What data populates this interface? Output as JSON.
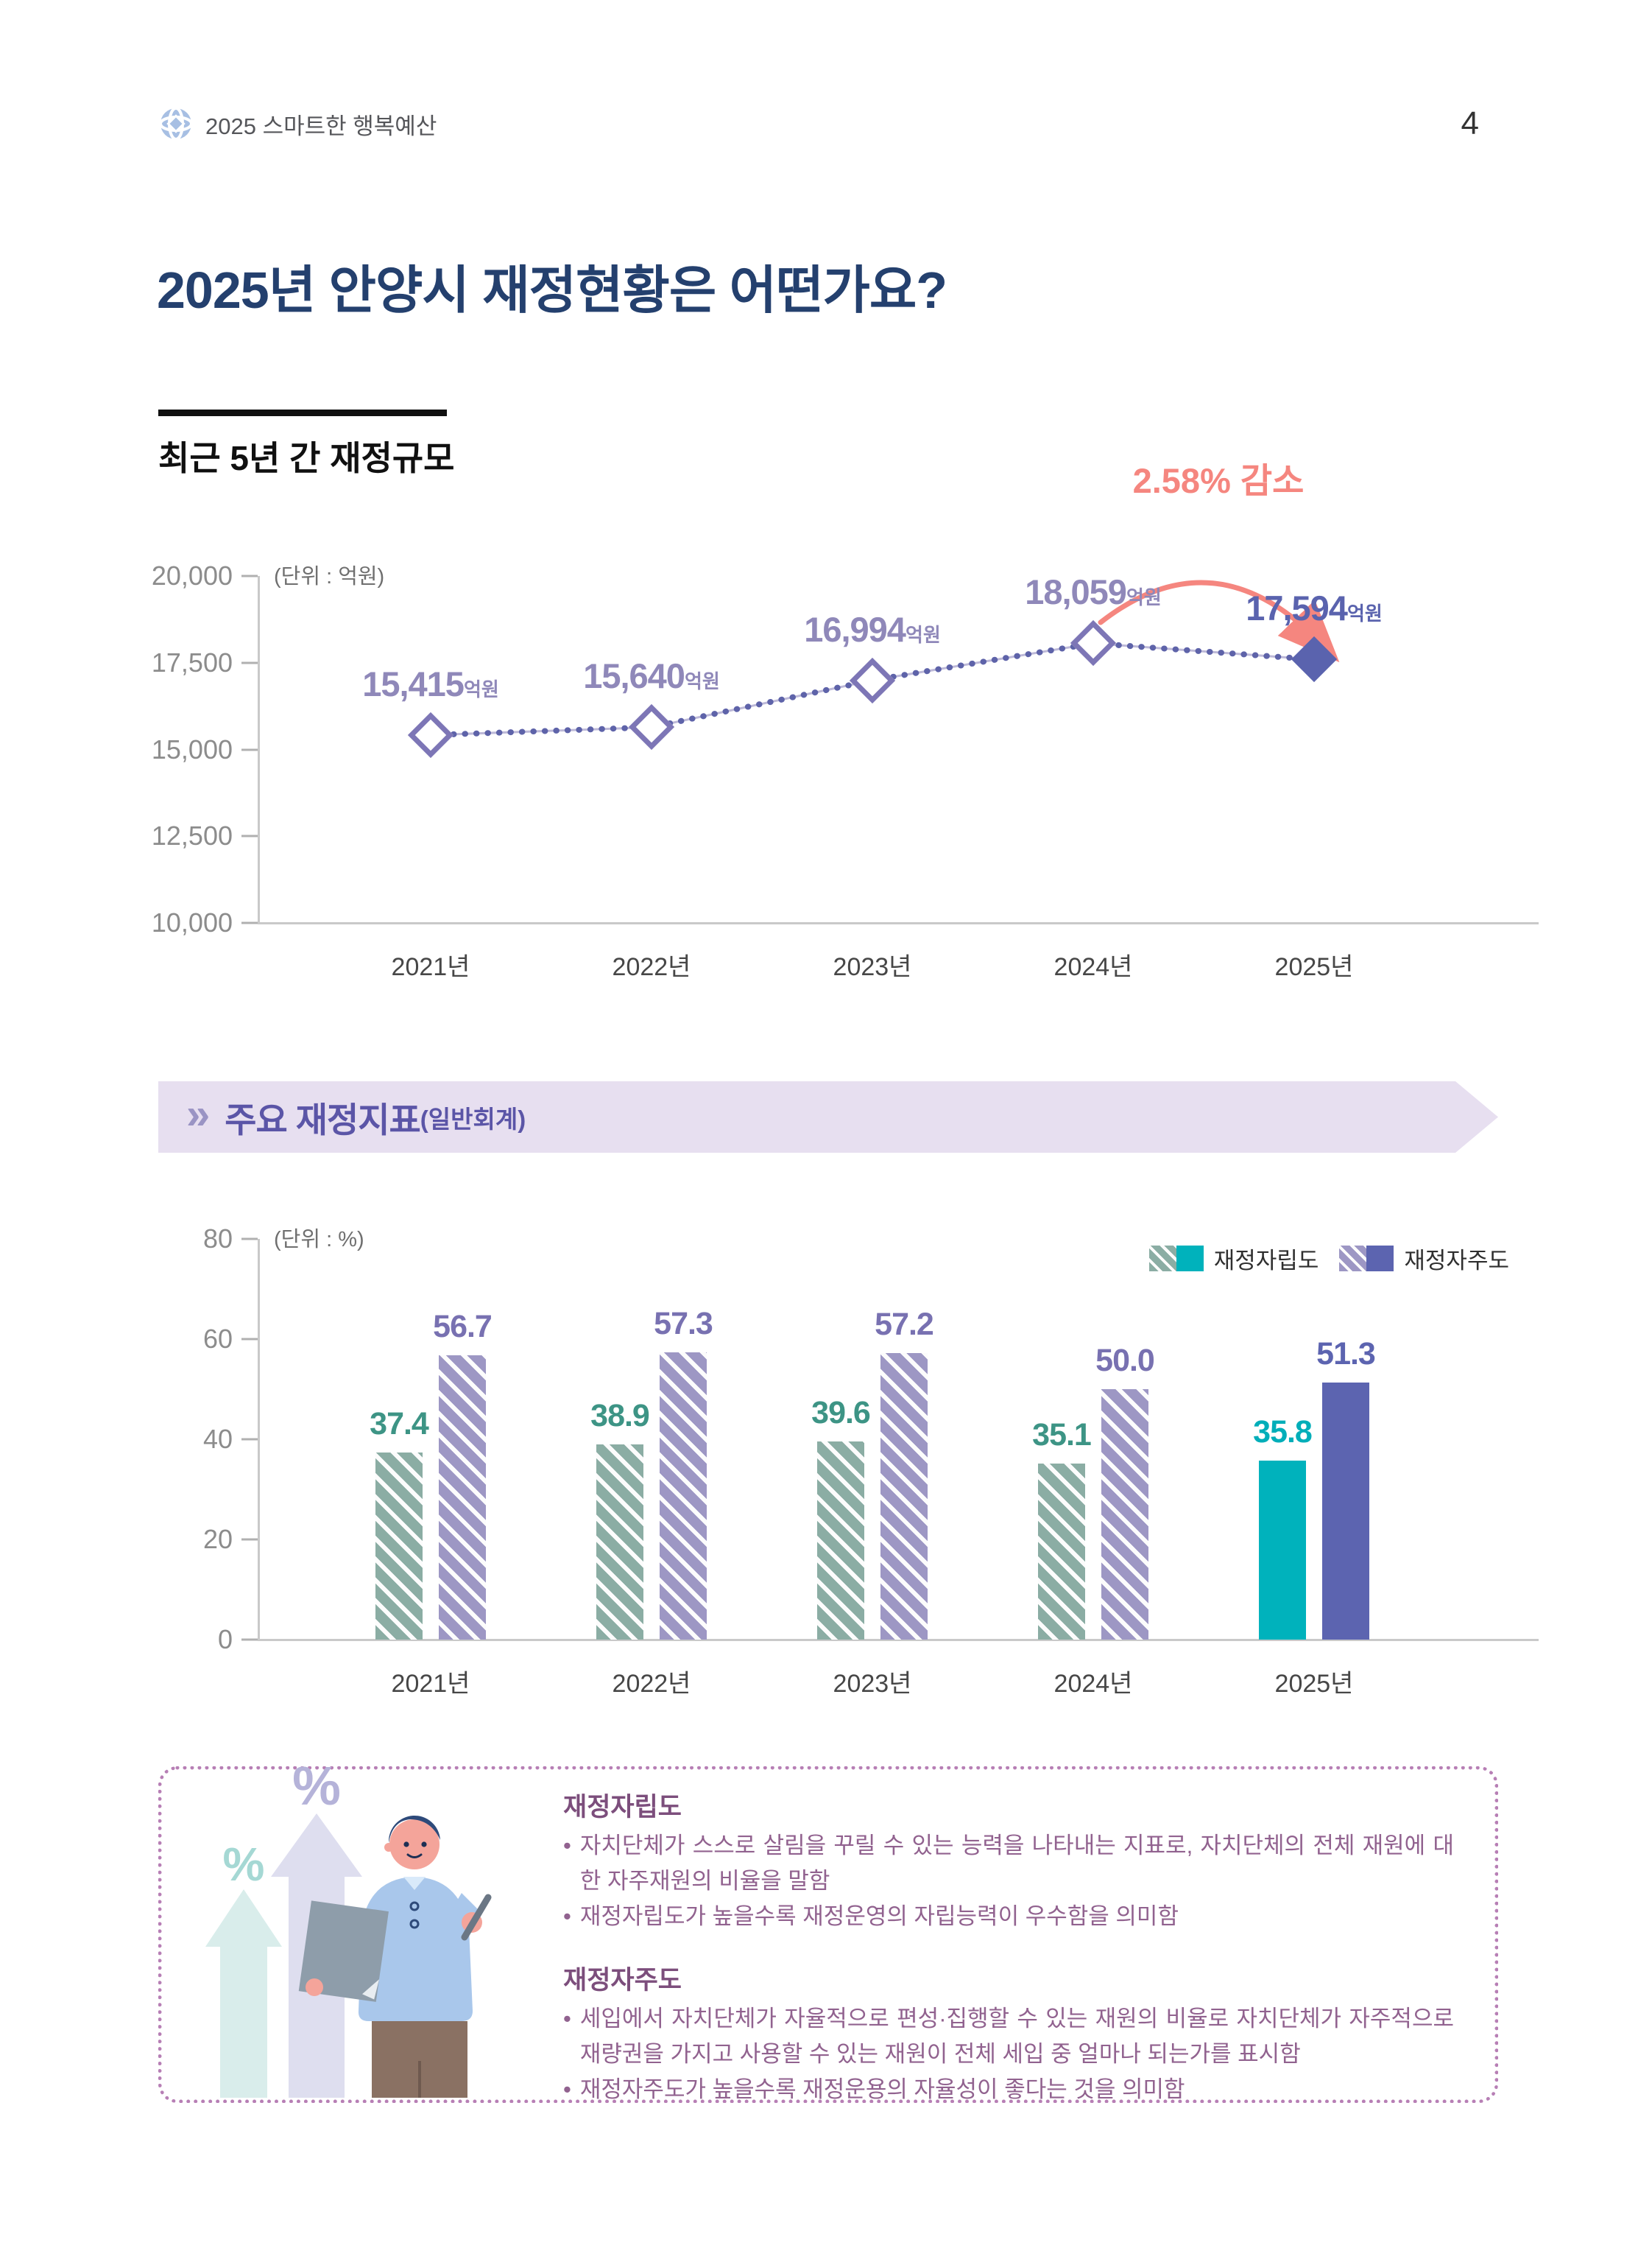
{
  "page": {
    "number": "4"
  },
  "header": {
    "brand": "2025 스마트한 행복예산"
  },
  "title": "2025년 안양시 재정현황은 어떤가요?",
  "section1": {
    "heading": "최근 5년 간 재정규모"
  },
  "banner": {
    "title": "주요 재정지표",
    "subtitle": "(일반회계)"
  },
  "legend": [
    {
      "label": "재정자립도"
    },
    {
      "label": "재정자주도"
    }
  ],
  "colors": {
    "title_navy": "#24406e",
    "annotation_coral": "#f5867f",
    "line_purple": "#7d76b6",
    "line_value_purple": "#8f88b9",
    "highlight_indigo": "#5a63ae",
    "teal_solid": "#00b2bc",
    "teal_hatch": "#8bada4",
    "purple_solid": "#5c64b0",
    "purple_hatch": "#9d97c4",
    "banner_bg": "#e7dff0",
    "banner_text": "#5b55a7",
    "info_border": "#b77fb5",
    "info_text": "#91628f"
  },
  "chart_data": [
    {
      "type": "line",
      "title": "최근 5년 간 재정규모",
      "unit_label": "(단위 : 억원)",
      "categories": [
        "2021년",
        "2022년",
        "2023년",
        "2024년",
        "2025년"
      ],
      "values": [
        15415,
        15640,
        16994,
        18059,
        17594
      ],
      "value_labels": [
        "15,415",
        "15,640",
        "16,994",
        "18,059",
        "17,594"
      ],
      "value_suffix": "억원",
      "ylim": [
        10000,
        20000
      ],
      "yticks": [
        {
          "v": 20000,
          "label": "20,000"
        },
        {
          "v": 17500,
          "label": "17,500"
        },
        {
          "v": 15000,
          "label": "15,000"
        },
        {
          "v": 12500,
          "label": "12,500"
        },
        {
          "v": 10000,
          "label": "10,000"
        }
      ],
      "annotation": "2.58% 감소",
      "highlight_index": 4,
      "grid": false,
      "marker": "diamond"
    },
    {
      "type": "bar",
      "unit_label": "(단위 : %)",
      "categories": [
        "2021년",
        "2022년",
        "2023년",
        "2024년",
        "2025년"
      ],
      "series": [
        {
          "name": "재정자립도",
          "values": [
            37.4,
            38.9,
            39.6,
            35.1,
            35.8
          ],
          "value_labels": [
            "37.4",
            "38.9",
            "39.6",
            "35.1",
            "35.8"
          ]
        },
        {
          "name": "재정자주도",
          "values": [
            56.7,
            57.3,
            57.2,
            50.0,
            51.3
          ],
          "value_labels": [
            "56.7",
            "57.3",
            "57.2",
            "50.0",
            "51.3"
          ]
        }
      ],
      "ylim": [
        0,
        80
      ],
      "yticks": [
        {
          "v": 80,
          "label": "80"
        },
        {
          "v": 60,
          "label": "60"
        },
        {
          "v": 40,
          "label": "40"
        },
        {
          "v": 20,
          "label": "20"
        },
        {
          "v": 0,
          "label": "0"
        }
      ],
      "legend_position": "top-right",
      "highlight_index": 4,
      "grid": false
    }
  ],
  "info": {
    "sections": [
      {
        "title": "재정자립도",
        "bullets": [
          "자치단체가 스스로 살림을 꾸릴 수 있는 능력을 나타내는 지표로, 자치단체의 전체 재원에 대한 자주재원의 비율을 말함",
          "재정자립도가 높을수록 재정운영의 자립능력이 우수함을 의미함"
        ]
      },
      {
        "title": "재정자주도",
        "bullets": [
          "세입에서 자치단체가 자율적으로 편성·집행할 수 있는 재원의 비율로 자치단체가 자주적으로 재량권을 가지고 사용할 수 있는 재원이 전체 세입 중 얼마나 되는가를 표시함",
          "재정자주도가 높을수록 재정운용의 자율성이 좋다는 것을 의미함"
        ]
      }
    ]
  }
}
